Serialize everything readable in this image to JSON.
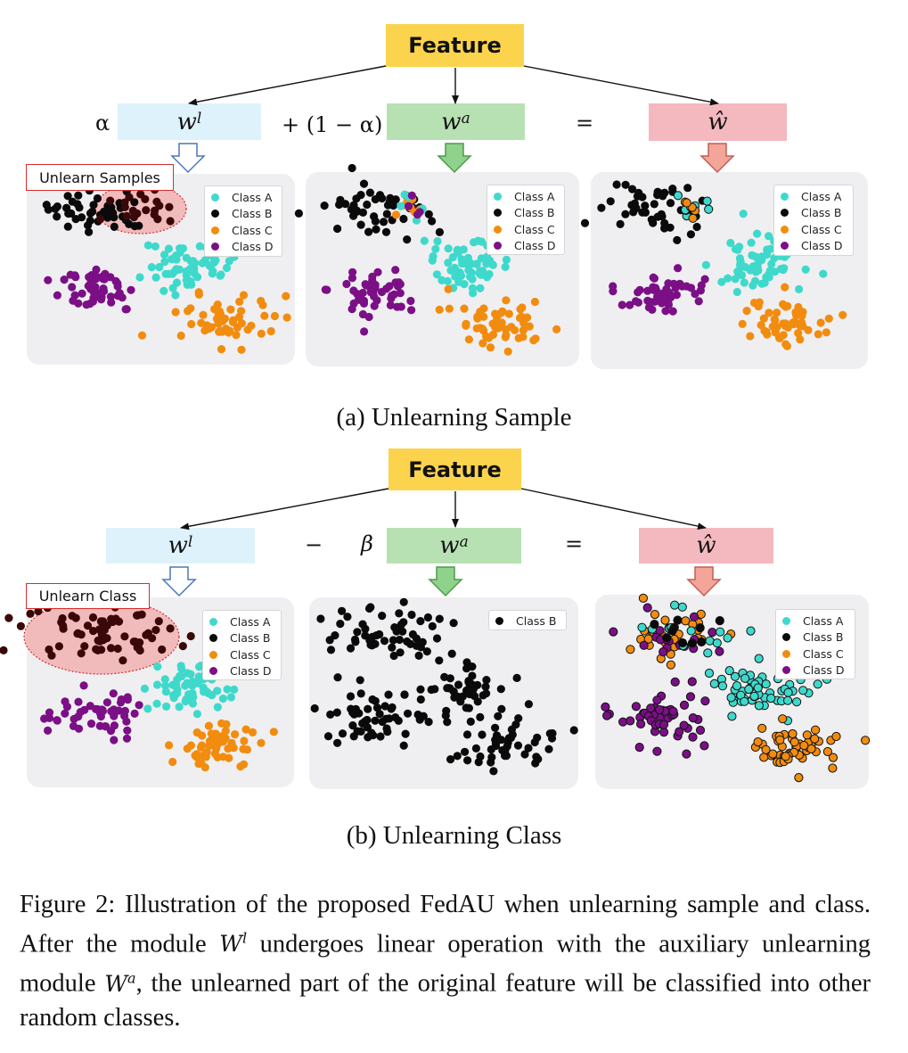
{
  "colors": {
    "class_a": "#3fd9cc",
    "class_b": "#0a0a0a",
    "class_c": "#f28c0f",
    "class_d": "#7b0f86",
    "feature_box": "#fcd34d",
    "wl_box": "#def2fb",
    "wa_box": "#b7e1b3",
    "what_box": "#f4b8bf",
    "highlight": "#f2a9a9"
  },
  "feature_label": "Feature",
  "w_symbol": "w",
  "w_l_sup": "l",
  "w_a_sup": "a",
  "w_hat": "ŵ",
  "section_a": {
    "alpha": "α",
    "plus_term": "+ (1 − α)",
    "equals": "=",
    "tag": "Unlearn Samples",
    "subcaption": "(a) Unlearning Sample",
    "legend": [
      "Class A",
      "Class B",
      "Class C",
      "Class D"
    ]
  },
  "section_b": {
    "minus": "−",
    "beta": "β",
    "equals": "=",
    "tag": "Unlearn Class",
    "subcaption": "(b) Unlearning Class",
    "legend": [
      "Class A",
      "Class B",
      "Class C",
      "Class D"
    ],
    "legend_middle": [
      "Class B"
    ]
  },
  "caption": {
    "part1": "Figure 2: Illustration of the proposed FedAU when unlearning sample and class. After the module ",
    "var1": "W",
    "var1_sup": "l",
    "part2": " undergoes linear operation with the auxiliary unlearning module ",
    "var2": "W",
    "var2_sup": "a",
    "part3": ", the unlearned part of the original feature will be classified into other random classes."
  }
}
